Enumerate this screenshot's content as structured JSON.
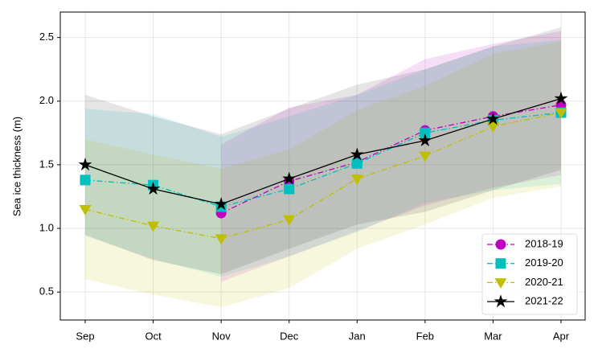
{
  "chart_data": {
    "type": "line",
    "ylabel": "Sea ice thickness (m)",
    "categories": [
      "Sep",
      "Oct",
      "Nov",
      "Dec",
      "Jan",
      "Feb",
      "Mar",
      "Apr"
    ],
    "ylim": [
      0.28,
      2.7
    ],
    "yticks": [
      0.5,
      {
        "value": 1,
        "label": "1.0"
      },
      1.5,
      {
        "value": 2,
        "label": "2.0"
      },
      2.5
    ],
    "grid": true,
    "legend": "lower right",
    "series": [
      {
        "name": "2018-19",
        "color": "#bf00bf",
        "linestyle": "dashdot",
        "marker": "circle",
        "values": [
          null,
          null,
          1.12,
          1.37,
          1.52,
          1.77,
          1.88,
          1.97
        ],
        "upper": [
          null,
          null,
          1.66,
          1.95,
          2.05,
          2.33,
          2.45,
          2.55
        ],
        "lower": [
          null,
          null,
          0.58,
          0.78,
          0.98,
          1.18,
          1.32,
          1.42
        ]
      },
      {
        "name": "2019-20",
        "color": "#00bfbf",
        "linestyle": "dashdot",
        "marker": "square",
        "values": [
          1.38,
          1.34,
          1.17,
          1.31,
          1.51,
          1.75,
          1.85,
          1.91
        ],
        "upper": [
          1.94,
          1.9,
          1.72,
          1.88,
          2.05,
          2.25,
          2.43,
          2.48
        ],
        "lower": [
          0.94,
          0.76,
          0.62,
          0.78,
          0.97,
          1.2,
          1.3,
          1.35
        ]
      },
      {
        "name": "2020-21",
        "color": "#bfbf00",
        "linestyle": "dashdot",
        "marker": "triangle-down",
        "values": [
          1.15,
          1.02,
          0.92,
          1.07,
          1.39,
          1.57,
          1.8,
          1.91
        ],
        "upper": [
          1.7,
          1.58,
          1.47,
          1.62,
          1.93,
          2.12,
          2.37,
          2.47
        ],
        "lower": [
          0.6,
          0.48,
          0.38,
          0.53,
          0.84,
          1.03,
          1.24,
          1.33
        ]
      },
      {
        "name": "2021-22",
        "color": "#000000",
        "linestyle": "solid",
        "marker": "star",
        "values": [
          1.5,
          1.31,
          1.19,
          1.39,
          1.58,
          1.69,
          1.86,
          2.02
        ],
        "upper": [
          2.05,
          1.88,
          1.74,
          1.94,
          2.13,
          2.25,
          2.43,
          2.58
        ],
        "lower": [
          0.95,
          0.75,
          0.64,
          0.84,
          1.03,
          1.13,
          1.3,
          1.46
        ]
      }
    ]
  }
}
